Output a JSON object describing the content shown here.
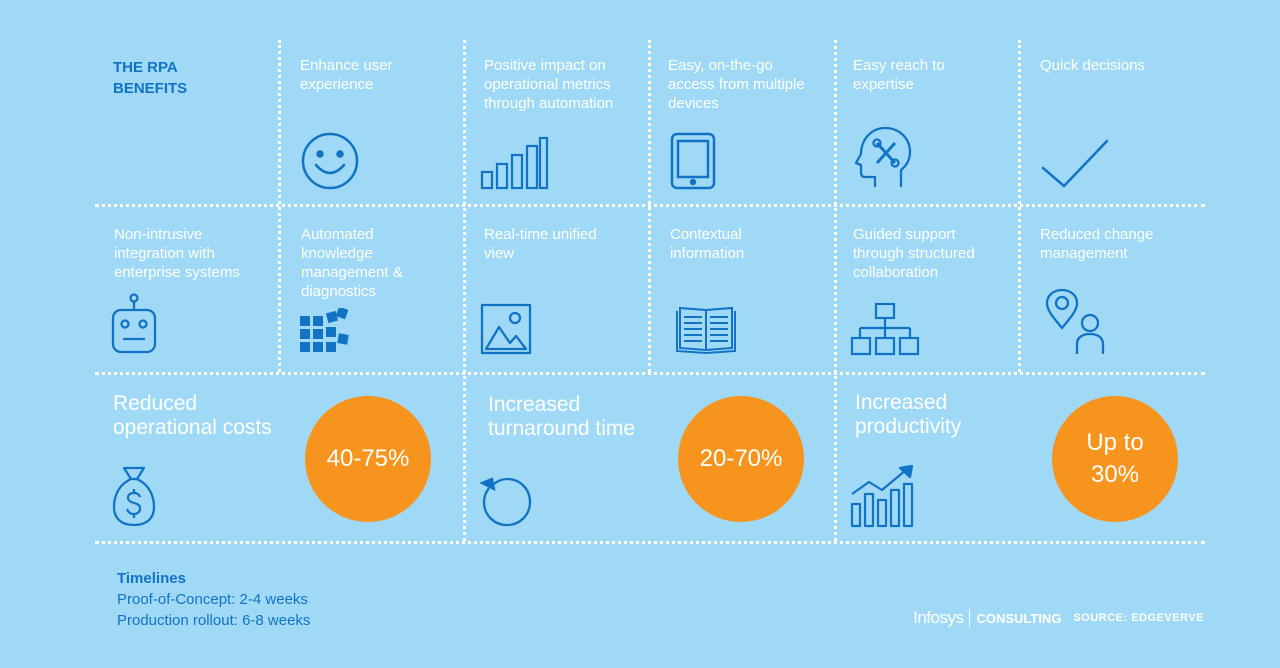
{
  "header": {
    "title": "THE RPA\nBENEFITS"
  },
  "row1": [
    {
      "label": "Enhance user\nexperience",
      "icon": "smiley-face-icon"
    },
    {
      "label": "Positive impact on\noperational metrics\nthrough automation",
      "icon": "bar-chart-icon"
    },
    {
      "label": "Easy, on-the-go\naccess from multiple\ndevices",
      "icon": "tablet-icon"
    },
    {
      "label": "Easy reach to\nexpertise",
      "icon": "head-tools-icon"
    },
    {
      "label": "Quick decisions",
      "icon": "checkmark-icon"
    }
  ],
  "row2": [
    {
      "label": "Non-intrusive\nintegration with\nenterprise systems",
      "icon": "robot-icon"
    },
    {
      "label": "Automated\nknowledge\nmanagement &\ndiagnostics",
      "icon": "blocks-icon"
    },
    {
      "label": "Real-time unified\nview",
      "icon": "image-icon"
    },
    {
      "label": "Contextual\ninformation",
      "icon": "book-icon"
    },
    {
      "label": "Guided support\nthrough structured\ncollaboration",
      "icon": "org-chart-icon"
    },
    {
      "label": "Reduced change\nmanagement",
      "icon": "location-person-icon"
    }
  ],
  "benefits": [
    {
      "title": "Reduced\noperational costs",
      "value": "40-75%",
      "icon": "money-bag-icon"
    },
    {
      "title": "Increased\nturnaround time",
      "value": "20-70%",
      "icon": "refresh-icon"
    },
    {
      "title": "Increased\nproductivity",
      "value": "Up to\n30%",
      "icon": "growth-chart-icon"
    }
  ],
  "timelines": {
    "title": "Timelines",
    "poc": "Proof-of-Concept: 2-4 weeks",
    "rollout": "Production rollout: 6-8 weeks"
  },
  "footer": {
    "brand": "Infosys",
    "consulting": "CONSULTING",
    "source": "SOURCE: EDGEVERVE"
  },
  "colors": {
    "background": "#9fd9f6",
    "accent": "#1273c5",
    "circle": "#f7941d",
    "text": "#ffffff"
  }
}
